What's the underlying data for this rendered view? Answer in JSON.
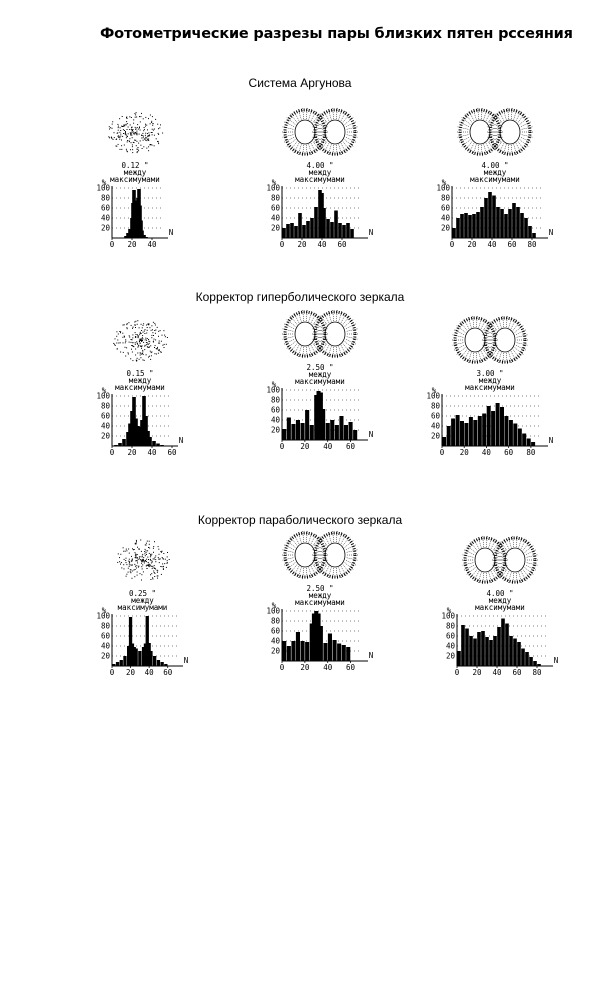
{
  "title": "Фотометрические разрезы пары близких пятен рссеяния",
  "sections": [
    {
      "title": "Система Аргунова",
      "panels": [
        {
          "separation": "0.12 \"",
          "caption_line1": "между",
          "caption_line2": "максимумами",
          "spot": "single",
          "y_unit": "%",
          "x_unit": "N",
          "y_ticks": [
            "100",
            "80",
            "60",
            "40",
            "20"
          ],
          "x_ticks": [
            "0",
            "20",
            "40"
          ]
        },
        {
          "separation": "4.00 \"",
          "caption_line1": "между",
          "caption_line2": "максимумами",
          "spot": "double-ring",
          "y_unit": "%",
          "x_unit": "N",
          "y_ticks": [
            "100",
            "80",
            "60",
            "40",
            "20"
          ],
          "x_ticks": [
            "0",
            "20",
            "40",
            "60"
          ]
        },
        {
          "separation": "4.00 \"",
          "caption_line1": "между",
          "caption_line2": "максимумами",
          "spot": "double-ring",
          "y_unit": "%",
          "x_unit": "N",
          "y_ticks": [
            "100",
            "80",
            "60",
            "40",
            "20"
          ],
          "x_ticks": [
            "0",
            "20",
            "40",
            "60",
            "80"
          ]
        }
      ]
    },
    {
      "title": "Корректор гиперболического зеркала",
      "panels": [
        {
          "separation": "0.15 \"",
          "caption_line1": "между",
          "caption_line2": "максимумами",
          "spot": "single",
          "y_unit": "%",
          "x_unit": "N",
          "y_ticks": [
            "100",
            "80",
            "60",
            "40",
            "20"
          ],
          "x_ticks": [
            "0",
            "20",
            "40",
            "60"
          ]
        },
        {
          "separation": "2.50 \"",
          "caption_line1": "между",
          "caption_line2": "максимумами",
          "spot": "double-ring",
          "y_unit": "%",
          "x_unit": "N",
          "y_ticks": [
            "100",
            "80",
            "60",
            "40",
            "20"
          ],
          "x_ticks": [
            "0",
            "20",
            "40",
            "60"
          ]
        },
        {
          "separation": "3.00 \"",
          "caption_line1": "между",
          "caption_line2": "максимумами",
          "spot": "double-ring",
          "y_unit": "%",
          "x_unit": "N",
          "y_ticks": [
            "100",
            "80",
            "60",
            "40",
            "20"
          ],
          "x_ticks": [
            "0",
            "20",
            "40",
            "60",
            "80"
          ]
        }
      ]
    },
    {
      "title": "Корректор параболического зеркала",
      "panels": [
        {
          "separation": "0.25 \"",
          "caption_line1": "между",
          "caption_line2": "максимумами",
          "spot": "single",
          "y_unit": "%",
          "x_unit": "N",
          "y_ticks": [
            "100",
            "80",
            "60",
            "40",
            "20"
          ],
          "x_ticks": [
            "0",
            "20",
            "40",
            "60"
          ]
        },
        {
          "separation": "2.50 \"",
          "caption_line1": "между",
          "caption_line2": "максимумами",
          "spot": "double-ring",
          "y_unit": "%",
          "x_unit": "N",
          "y_ticks": [
            "100",
            "80",
            "60",
            "40",
            "20"
          ],
          "x_ticks": [
            "0",
            "20",
            "40",
            "60"
          ]
        },
        {
          "separation": "4.00 \"",
          "caption_line1": "между",
          "caption_line2": "максимумами",
          "spot": "double-ring",
          "y_unit": "%",
          "x_unit": "N",
          "y_ticks": [
            "100",
            "80",
            "60",
            "40",
            "20"
          ],
          "x_ticks": [
            "0",
            "20",
            "40",
            "60",
            "80"
          ]
        }
      ]
    }
  ],
  "chart_data": [
    {
      "type": "bar",
      "section": "Система Аргунова",
      "xlabel": "N",
      "ylabel": "%",
      "xlim": [
        0,
        50
      ],
      "ylim": [
        0,
        100
      ],
      "grid": true,
      "x": [
        14,
        16,
        18,
        20,
        21,
        22,
        23,
        24,
        25,
        26,
        27,
        28,
        29,
        30,
        32,
        34
      ],
      "values": [
        4,
        10,
        18,
        40,
        70,
        96,
        75,
        55,
        58,
        80,
        98,
        65,
        35,
        15,
        6,
        2
      ]
    },
    {
      "type": "bar",
      "section": "Система Аргунова",
      "xlabel": "N",
      "ylabel": "%",
      "xlim": [
        0,
        80
      ],
      "ylim": [
        0,
        100
      ],
      "grid": true,
      "x": [
        2,
        6,
        10,
        14,
        18,
        22,
        26,
        30,
        34,
        38,
        40,
        42,
        46,
        50,
        54,
        58,
        62,
        66,
        70
      ],
      "values": [
        20,
        28,
        30,
        24,
        50,
        26,
        34,
        40,
        62,
        96,
        90,
        60,
        38,
        32,
        55,
        30,
        26,
        30,
        18
      ]
    },
    {
      "type": "bar",
      "section": "Система Аргунова",
      "xlabel": "N",
      "ylabel": "%",
      "xlim": [
        0,
        90
      ],
      "ylim": [
        0,
        100
      ],
      "grid": true,
      "x": [
        2,
        6,
        10,
        14,
        18,
        22,
        26,
        30,
        34,
        38,
        42,
        46,
        50,
        54,
        58,
        62,
        66,
        70,
        74,
        78,
        82
      ],
      "values": [
        20,
        40,
        48,
        50,
        46,
        48,
        52,
        62,
        80,
        92,
        85,
        62,
        58,
        48,
        58,
        70,
        62,
        50,
        40,
        24,
        10
      ]
    },
    {
      "type": "bar",
      "section": "Корректор гиперболического зеркала",
      "xlabel": "N",
      "ylabel": "%",
      "xlim": [
        0,
        60
      ],
      "ylim": [
        0,
        100
      ],
      "grid": true,
      "x": [
        4,
        8,
        12,
        16,
        18,
        20,
        22,
        24,
        26,
        28,
        30,
        32,
        34,
        36,
        38,
        42,
        46,
        50
      ],
      "values": [
        2,
        6,
        14,
        28,
        45,
        70,
        98,
        55,
        40,
        38,
        52,
        100,
        60,
        30,
        18,
        10,
        5,
        2
      ]
    },
    {
      "type": "bar",
      "section": "Корректор гиперболического зеркала",
      "xlabel": "N",
      "ylabel": "%",
      "xlim": [
        0,
        70
      ],
      "ylim": [
        0,
        100
      ],
      "grid": true,
      "x": [
        2,
        6,
        10,
        14,
        18,
        22,
        26,
        30,
        32,
        34,
        36,
        40,
        44,
        48,
        52,
        56,
        60,
        64
      ],
      "values": [
        22,
        45,
        32,
        40,
        34,
        60,
        30,
        90,
        98,
        95,
        62,
        34,
        40,
        30,
        48,
        30,
        36,
        20
      ]
    },
    {
      "type": "bar",
      "section": "Корректор гиперболического зеркала",
      "xlabel": "N",
      "ylabel": "%",
      "xlim": [
        0,
        90
      ],
      "ylim": [
        0,
        100
      ],
      "grid": true,
      "x": [
        2,
        6,
        10,
        14,
        18,
        22,
        26,
        30,
        34,
        38,
        42,
        46,
        50,
        54,
        58,
        62,
        66,
        70,
        74,
        78,
        82
      ],
      "values": [
        18,
        40,
        55,
        62,
        50,
        46,
        58,
        52,
        60,
        65,
        80,
        70,
        86,
        78,
        60,
        52,
        45,
        35,
        25,
        15,
        8
      ]
    },
    {
      "type": "bar",
      "section": "Корректор параболического зеркала",
      "xlabel": "N",
      "ylabel": "%",
      "xlim": [
        0,
        70
      ],
      "ylim": [
        0,
        100
      ],
      "grid": true,
      "x": [
        2,
        6,
        10,
        14,
        18,
        20,
        22,
        24,
        26,
        30,
        34,
        36,
        38,
        40,
        42,
        46,
        50,
        54,
        58
      ],
      "values": [
        4,
        8,
        12,
        20,
        40,
        98,
        45,
        38,
        35,
        30,
        38,
        45,
        100,
        46,
        30,
        20,
        12,
        8,
        4
      ]
    },
    {
      "type": "bar",
      "section": "Корректор параболического зеркала",
      "xlabel": "N",
      "ylabel": "%",
      "xlim": [
        0,
        70
      ],
      "ylim": [
        0,
        100
      ],
      "grid": true,
      "x": [
        2,
        6,
        10,
        14,
        18,
        22,
        26,
        28,
        30,
        32,
        34,
        38,
        42,
        46,
        50,
        54,
        58
      ],
      "values": [
        40,
        30,
        40,
        58,
        40,
        38,
        75,
        95,
        100,
        95,
        70,
        36,
        55,
        42,
        35,
        32,
        28
      ]
    },
    {
      "type": "bar",
      "section": "Корректор параболического зеркала",
      "xlabel": "N",
      "ylabel": "%",
      "xlim": [
        0,
        90
      ],
      "ylim": [
        0,
        100
      ],
      "grid": true,
      "x": [
        2,
        6,
        10,
        14,
        18,
        22,
        26,
        30,
        34,
        38,
        42,
        46,
        50,
        54,
        58,
        62,
        66,
        70,
        74,
        78,
        82
      ],
      "values": [
        30,
        82,
        75,
        60,
        55,
        68,
        70,
        58,
        52,
        60,
        78,
        95,
        85,
        60,
        55,
        48,
        35,
        28,
        18,
        10,
        4
      ]
    }
  ]
}
